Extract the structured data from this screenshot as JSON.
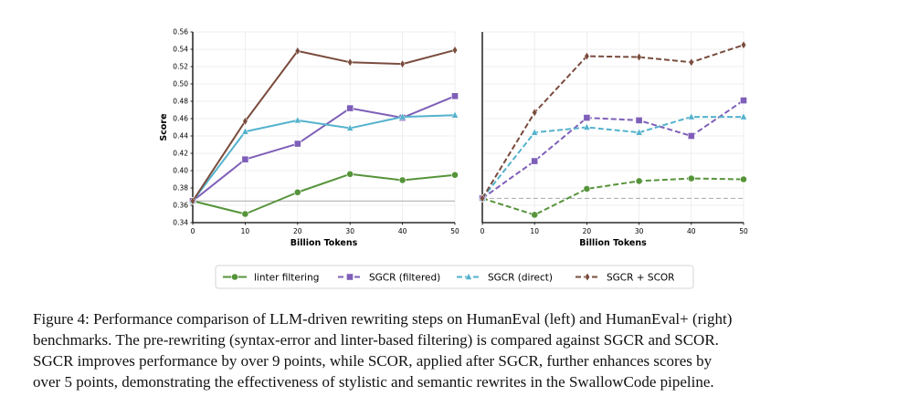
{
  "chart_data": [
    {
      "type": "line",
      "panel": "left",
      "xlabel": "Billion Tokens",
      "ylabel": "Score",
      "x": [
        0,
        10,
        20,
        30,
        40,
        50
      ],
      "xlim": [
        0,
        50
      ],
      "ylim": [
        0.34,
        0.56
      ],
      "xticks": [
        "0",
        "10",
        "20",
        "30",
        "40",
        "50"
      ],
      "yticks": [
        "0.34",
        "0.36",
        "0.38",
        "0.40",
        "0.42",
        "0.44",
        "0.46",
        "0.48",
        "0.50",
        "0.52",
        "0.54",
        "0.56"
      ],
      "grid": true,
      "line_style": "solid",
      "baseline": 0.365,
      "series": [
        {
          "name": "linter filtering",
          "color": "#56943a",
          "marker": "circle",
          "values": [
            0.365,
            0.35,
            0.375,
            0.396,
            0.389,
            0.395
          ]
        },
        {
          "name": "SGCR (filtered)",
          "color": "#7e5fb8",
          "marker": "square",
          "values": [
            0.365,
            0.413,
            0.431,
            0.472,
            0.461,
            0.486
          ]
        },
        {
          "name": "SGCR (direct)",
          "color": "#54b2cd",
          "marker": "triangle",
          "values": [
            0.365,
            0.445,
            0.458,
            0.449,
            0.462,
            0.464
          ]
        },
        {
          "name": "SGCR + SCOR",
          "color": "#7a4c3e",
          "marker": "diamond",
          "values": [
            0.365,
            0.457,
            0.538,
            0.525,
            0.523,
            0.539
          ]
        }
      ]
    },
    {
      "type": "line",
      "panel": "right",
      "xlabel": "Billion Tokens",
      "ylabel": "",
      "x": [
        0,
        10,
        20,
        30,
        40,
        50
      ],
      "xlim": [
        0,
        50
      ],
      "ylim": [
        0.34,
        0.56
      ],
      "xticks": [
        "0",
        "10",
        "20",
        "30",
        "40",
        "50"
      ],
      "yticks": [],
      "grid": true,
      "line_style": "dashed",
      "baseline": 0.368,
      "series": [
        {
          "name": "linter filtering",
          "color": "#56943a",
          "marker": "circle",
          "values": [
            0.368,
            0.349,
            0.379,
            0.388,
            0.391,
            0.39
          ]
        },
        {
          "name": "SGCR (filtered)",
          "color": "#7e5fb8",
          "marker": "square",
          "values": [
            0.368,
            0.411,
            0.461,
            0.458,
            0.44,
            0.481
          ]
        },
        {
          "name": "SGCR (direct)",
          "color": "#54b2cd",
          "marker": "triangle",
          "values": [
            0.368,
            0.444,
            0.45,
            0.444,
            0.462,
            0.462
          ]
        },
        {
          "name": "SGCR + SCOR",
          "color": "#7a4c3e",
          "marker": "diamond",
          "values": [
            0.368,
            0.467,
            0.532,
            0.531,
            0.525,
            0.545
          ]
        }
      ]
    }
  ],
  "legend": [
    {
      "label": "linter filtering",
      "color": "#56943a",
      "marker": "circle"
    },
    {
      "label": "SGCR (filtered)",
      "color": "#7e5fb8",
      "marker": "square"
    },
    {
      "label": "SGCR (direct)",
      "color": "#54b2cd",
      "marker": "triangle"
    },
    {
      "label": "SGCR + SCOR",
      "color": "#7a4c3e",
      "marker": "diamond"
    }
  ],
  "caption": [
    "Figure 4: Performance comparison of LLM-driven rewriting steps on HumanEval (left) and HumanEval+ (right)",
    "benchmarks. The pre-rewriting (syntax-error and linter-based filtering) is compared against SGCR and SCOR.",
    "SGCR improves performance by over 9 points, while SCOR, applied after SGCR, further enhances scores by",
    "over 5 points, demonstrating the effectiveness of stylistic and semantic rewrites in the SwallowCode pipeline."
  ]
}
